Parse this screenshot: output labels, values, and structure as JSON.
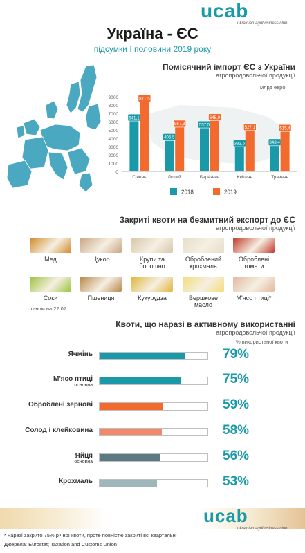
{
  "header": {
    "logo": "ucab",
    "logo_sub": "ukrainian agribusiness club",
    "title": "Україна - ЄС",
    "subtitle": "підсумки І половини 2019 року"
  },
  "import_section": {
    "title": "Помісячний імпорт ЄС з України",
    "subtitle": "агропродовольчої продукції",
    "unit": "млрд евро"
  },
  "chart_data": {
    "type": "bar",
    "categories": [
      "Січень",
      "Лютий",
      "Березень",
      "Квітень",
      "Травень"
    ],
    "series": [
      {
        "name": "2018",
        "color": "#1a9aa8",
        "values": [
          641.1,
          405.5,
          557.5,
          332.5,
          343.4
        ]
      },
      {
        "name": "2019",
        "color": "#f26a2e",
        "values": [
          871.5,
          567.3,
          645.0,
          527.1,
          515.4
        ]
      }
    ],
    "data_labels": {
      "2018": [
        "641,1",
        "405,5",
        "557,5",
        "332,5",
        "343,4"
      ],
      "2019": [
        "871,5",
        "567,3",
        "645,0",
        "527,1",
        "515,4"
      ]
    },
    "yticks": [
      "0",
      "1000",
      "2000",
      "3000",
      "4000",
      "5000",
      "6000",
      "7000",
      "8000",
      "9000"
    ],
    "ylim": [
      0,
      900
    ],
    "legend_position": "bottom"
  },
  "quotas_section": {
    "title": "Закриті квоти на безмитний експорт до ЄС",
    "subtitle": "агропродовольчої продукції",
    "as_of": "станом на 22.07",
    "items": [
      {
        "label": "Мед",
        "icon": "honey-photo",
        "color": "#d08a2a"
      },
      {
        "label": "Цукор",
        "icon": "sugar-photo",
        "color": "#c9a582"
      },
      {
        "label": "Крупи та борошно",
        "icon": "flour-photo",
        "color": "#d8c7a8"
      },
      {
        "label": "Оброблений крохмаль",
        "icon": "starch-photo",
        "color": "#e6dccb"
      },
      {
        "label": "Оброблені томати",
        "icon": "tomato-photo",
        "color": "#c0392b"
      },
      {
        "label": "Соки",
        "icon": "juice-photo",
        "color": "#9cc23e"
      },
      {
        "label": "Пшениця",
        "icon": "wheat-photo",
        "color": "#b8874b"
      },
      {
        "label": "Кукурудза",
        "icon": "corn-photo",
        "color": "#e0b63a"
      },
      {
        "label": "Вершкове масло",
        "icon": "butter-photo",
        "color": "#f2dd7a"
      },
      {
        "label": "М'ясо птиці*",
        "icon": "poultry-photo",
        "color": "#e0b9a0"
      }
    ]
  },
  "active_section": {
    "title": "Квоти, що наразі в активному використанні",
    "subtitle": "агропродовольчої продукції",
    "unit": "% використаної квоти",
    "items": [
      {
        "label": "Ячмінь",
        "sub": "",
        "value": 79,
        "display": "79%",
        "color": "#1a9aa8"
      },
      {
        "label": "М'ясо птиці",
        "sub": "основна",
        "value": 75,
        "display": "75%",
        "color": "#1a9aa8"
      },
      {
        "label": "Оброблені зернові",
        "sub": "",
        "value": 59,
        "display": "59%",
        "color": "#f26a2e"
      },
      {
        "label": "Солод і клейковина",
        "sub": "",
        "value": 58,
        "display": "58%",
        "color": "#f4876a"
      },
      {
        "label": "Яйця",
        "sub": "основна",
        "value": 56,
        "display": "56%",
        "color": "#5b7b80"
      },
      {
        "label": "Крохмаль",
        "sub": "",
        "value": 53,
        "display": "53%",
        "color": "#9fb6bb"
      }
    ]
  },
  "footer": {
    "logo": "ucab",
    "logo_sub": "ukrainian agribusiness club",
    "note": "* наразі закрито 75% річної квоти, проте повністю закриті всі квартальні",
    "sources": "Джерела: Eurostat; Taxation and Customs Union"
  }
}
